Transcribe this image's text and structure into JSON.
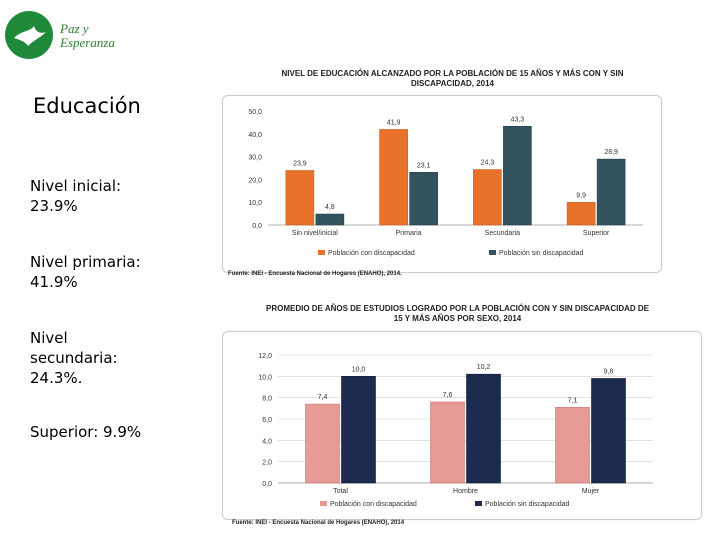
{
  "logo": {
    "line1": "Paz y",
    "line2": "Esperanza"
  },
  "slide_title": "Educación",
  "bullets": [
    "Nivel inicial: 23.9%",
    "Nivel primaria: 41.9%",
    "Nivel secundaria: 24.3%.",
    "Superior: 9.9%"
  ],
  "colors": {
    "orange": "#e8722a",
    "teal": "#33535e",
    "pink": "#e59a96",
    "navy": "#1d2b4e",
    "grid": "#d0d0d0"
  },
  "chart_data": [
    {
      "type": "bar",
      "title": "NIVEL DE EDUCACIÓN ALCANZADO POR LA POBLACIÓN DE 15 AÑOS Y MÁS CON Y SIN DISCAPACIDAD, 2014",
      "categories": [
        "Sin nivel/inicial",
        "Primaria",
        "Secundaria",
        "Superior"
      ],
      "series": [
        {
          "name": "Población con discapacidad",
          "values": [
            23.9,
            41.9,
            24.3,
            9.9
          ],
          "labels": [
            "23,9",
            "41,9",
            "24,3",
            "9,9"
          ]
        },
        {
          "name": "Población sin discapacidad",
          "values": [
            4.8,
            23.1,
            43.3,
            28.9
          ],
          "labels": [
            "4,8",
            "23,1",
            "43,3",
            "28,9"
          ]
        }
      ],
      "yticks": [
        "0,0",
        "10,0",
        "20,0",
        "30,0",
        "40,0",
        "50,0"
      ],
      "ylim": [
        0,
        50
      ],
      "source": "Fuente: INEI - Encuesta Nacional de Hogares (ENAHO), 2014."
    },
    {
      "type": "bar",
      "title": "PROMEDIO DE AÑOS DE ESTUDIOS LOGRADO POR LA POBLACIÓN CON Y SIN DISCAPACIDAD DE 15 Y MÁS AÑOS POR SEXO, 2014",
      "categories": [
        "Total",
        "Hombre",
        "Mujer"
      ],
      "series": [
        {
          "name": "Población con discapacidad",
          "values": [
            7.4,
            7.6,
            7.1
          ],
          "labels": [
            "7,4",
            "7,6",
            "7,1"
          ]
        },
        {
          "name": "Población sin discapacidad",
          "values": [
            10.0,
            10.2,
            9.8
          ],
          "labels": [
            "10,0",
            "10,2",
            "9,8"
          ]
        }
      ],
      "yticks": [
        "0,0",
        "2,0",
        "4,0",
        "6,0",
        "8,0",
        "10,0",
        "12,0"
      ],
      "ylim": [
        0,
        12
      ],
      "source": "Fuente: INEI - Encuesta Nacional de Hogares (ENAHO), 2014"
    }
  ]
}
